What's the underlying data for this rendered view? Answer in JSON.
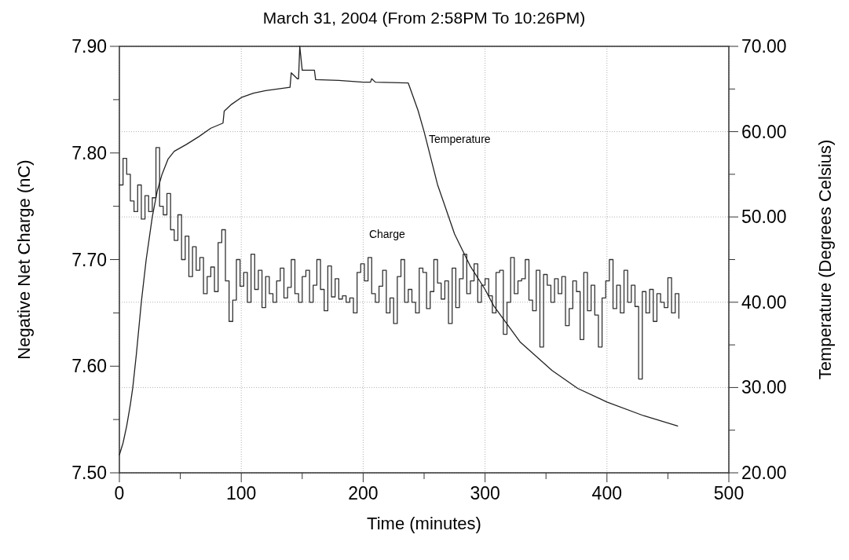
{
  "chart_data": {
    "type": "step",
    "title": "March 31, 2004 (From 2:58PM To 10:26PM)",
    "xlabel": "Time (minutes)",
    "ylabel": "Negative Net Charge (nC)",
    "y2label": "Temperature (Degrees Celsius)",
    "xlim": [
      0,
      500
    ],
    "xticks": [
      0,
      {
        "value": 50,
        "label": null
      },
      100,
      {
        "value": 150,
        "label": null
      },
      200,
      {
        "value": 250,
        "label": null
      },
      300,
      {
        "value": 350,
        "label": null
      },
      400,
      {
        "value": 450,
        "label": null
      },
      500
    ],
    "ylim": [
      7.5,
      7.9
    ],
    "yticks": [
      {
        "value": 7.5,
        "label": "7.50"
      },
      {
        "value": 7.55,
        "label": null
      },
      {
        "value": 7.6,
        "label": "7.60"
      },
      {
        "value": 7.65,
        "label": null
      },
      {
        "value": 7.7,
        "label": "7.70"
      },
      {
        "value": 7.75,
        "label": null
      },
      {
        "value": 7.8,
        "label": "7.80"
      },
      {
        "value": 7.85,
        "label": null
      },
      {
        "value": 7.9,
        "label": "7.90"
      }
    ],
    "y2lim": [
      20,
      70
    ],
    "y2ticks": [
      {
        "value": 20,
        "label": "20.00"
      },
      {
        "value": 25,
        "label": null
      },
      {
        "value": 30,
        "label": "30.00"
      },
      {
        "value": 35,
        "label": null
      },
      {
        "value": 40,
        "label": "40.00"
      },
      {
        "value": 45,
        "label": null
      },
      {
        "value": 50,
        "label": "50.00"
      },
      {
        "value": 55,
        "label": null
      },
      {
        "value": 60,
        "label": "60.00"
      },
      {
        "value": 65,
        "label": null
      },
      {
        "value": 70,
        "label": "70.00"
      }
    ],
    "grid": true,
    "legend": false,
    "series": [
      {
        "name": "Charge",
        "type": "step",
        "color": "#333333",
        "x": [
          0,
          3,
          6,
          9,
          12,
          15,
          18,
          21,
          24,
          27,
          30,
          33,
          36,
          39,
          42,
          45,
          48,
          51,
          54,
          57,
          60,
          63,
          66,
          69,
          72,
          75,
          78,
          81,
          84,
          87,
          90,
          93,
          96,
          99,
          102,
          105,
          108,
          111,
          114,
          117,
          120,
          123,
          126,
          129,
          132,
          135,
          138,
          141,
          144,
          147,
          150,
          153,
          156,
          159,
          162,
          165,
          168,
          171,
          174,
          177,
          180,
          183,
          186,
          189,
          192,
          195,
          198,
          201,
          204,
          207,
          210,
          213,
          216,
          219,
          222,
          225,
          228,
          231,
          234,
          237,
          240,
          243,
          246,
          249,
          252,
          255,
          258,
          261,
          264,
          267,
          270,
          273,
          276,
          279,
          282,
          285,
          288,
          291,
          294,
          297,
          300,
          303,
          306,
          309,
          312,
          315,
          318,
          321,
          324,
          327,
          330,
          333,
          336,
          339,
          342,
          345,
          348,
          351,
          354,
          357,
          360,
          363,
          366,
          369,
          372,
          375,
          378,
          381,
          384,
          387,
          390,
          393,
          396,
          399,
          402,
          405,
          408,
          411,
          414,
          417,
          420,
          423,
          426,
          429,
          432,
          435,
          438,
          441,
          444,
          447,
          450,
          453,
          456,
          459
        ],
        "values": [
          7.77,
          7.795,
          7.78,
          7.755,
          7.745,
          7.77,
          7.738,
          7.76,
          7.745,
          7.758,
          7.805,
          7.75,
          7.742,
          7.762,
          7.728,
          7.718,
          7.742,
          7.7,
          7.722,
          7.684,
          7.712,
          7.69,
          7.702,
          7.668,
          7.684,
          7.693,
          7.67,
          7.716,
          7.728,
          7.68,
          7.642,
          7.662,
          7.7,
          7.675,
          7.688,
          7.66,
          7.705,
          7.672,
          7.69,
          7.655,
          7.684,
          7.668,
          7.66,
          7.68,
          7.692,
          7.664,
          7.674,
          7.7,
          7.668,
          7.66,
          7.684,
          7.69,
          7.66,
          7.676,
          7.7,
          7.672,
          7.652,
          7.694,
          7.665,
          7.682,
          7.663,
          7.666,
          7.66,
          7.664,
          7.65,
          7.688,
          7.696,
          7.68,
          7.702,
          7.668,
          7.66,
          7.675,
          7.69,
          7.65,
          7.664,
          7.64,
          7.684,
          7.7,
          7.66,
          7.672,
          7.66,
          7.65,
          7.692,
          7.688,
          7.654,
          7.67,
          7.7,
          7.678,
          7.663,
          7.68,
          7.64,
          7.692,
          7.655,
          7.682,
          7.705,
          7.668,
          7.68,
          7.696,
          7.66,
          7.676,
          7.682,
          7.666,
          7.65,
          7.688,
          7.69,
          7.63,
          7.66,
          7.702,
          7.668,
          7.68,
          7.682,
          7.7,
          7.662,
          7.652,
          7.69,
          7.618,
          7.686,
          7.676,
          7.66,
          7.682,
          7.668,
          7.684,
          7.638,
          7.654,
          7.68,
          7.67,
          7.625,
          7.688,
          7.652,
          7.676,
          7.648,
          7.618,
          7.664,
          7.68,
          7.7,
          7.654,
          7.676,
          7.65,
          7.69,
          7.66,
          7.676,
          7.656,
          7.588,
          7.67,
          7.65,
          7.672,
          7.642,
          7.668,
          7.66,
          7.655,
          7.683,
          7.65,
          7.668,
          7.645
        ]
      },
      {
        "name": "Temperature",
        "type": "line",
        "axis": "y2",
        "color": "#222222",
        "x": [
          0,
          3,
          6,
          9,
          11,
          14,
          18,
          22,
          27,
          31,
          35,
          40,
          45,
          55,
          65,
          75,
          85,
          86,
          92,
          100,
          110,
          120,
          140,
          141,
          146,
          147,
          148,
          150,
          160,
          161,
          180,
          200,
          206,
          207,
          210,
          237,
          240,
          245,
          250,
          261,
          275,
          288,
          300,
          307,
          329,
          355,
          376,
          400,
          430,
          458
        ],
        "values": [
          22.1,
          23.5,
          25.5,
          28,
          30,
          34,
          40,
          45,
          50,
          53,
          55,
          56.8,
          57.7,
          58.5,
          59.4,
          60.4,
          61,
          62.4,
          63.2,
          64,
          64.5,
          64.8,
          65.2,
          66.9,
          66.2,
          66.2,
          70,
          67.2,
          67.2,
          66.1,
          66,
          65.8,
          65.8,
          66.2,
          65.8,
          65.7,
          64.5,
          62.5,
          60,
          53.8,
          48,
          44.2,
          41.5,
          39.6,
          35.3,
          32,
          29.9,
          28.3,
          26.7,
          25.5
        ]
      }
    ]
  }
}
